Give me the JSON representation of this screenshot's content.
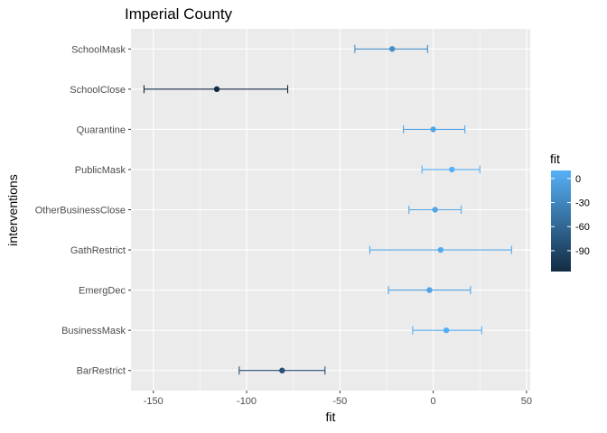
{
  "chart_data": {
    "type": "scatter",
    "title": "Imperial County",
    "xlabel": "fit",
    "ylabel": "interventions",
    "xlim": [
      -162,
      52
    ],
    "x_ticks": [
      -150,
      -100,
      -50,
      0,
      50
    ],
    "grid": true,
    "legend": {
      "title": "fit",
      "position": "right",
      "ticks": [
        0,
        -30,
        -60,
        -90
      ],
      "range": [
        -116,
        10
      ],
      "color_low": "#132B43",
      "color_high": "#56B1F7"
    },
    "categories": [
      "SchoolMask",
      "SchoolClose",
      "Quarantine",
      "PublicMask",
      "OtherBusinessClose",
      "GathRestrict",
      "EmergDec",
      "BusinessMask",
      "BarRestrict"
    ],
    "points": [
      {
        "intervention": "SchoolMask",
        "fit": -22,
        "lower": -42,
        "upper": -3
      },
      {
        "intervention": "SchoolClose",
        "fit": -116,
        "lower": -155,
        "upper": -78
      },
      {
        "intervention": "Quarantine",
        "fit": 0,
        "lower": -16,
        "upper": 17
      },
      {
        "intervention": "PublicMask",
        "fit": 10,
        "lower": -6,
        "upper": 25
      },
      {
        "intervention": "OtherBusinessClose",
        "fit": 1,
        "lower": -13,
        "upper": 15
      },
      {
        "intervention": "GathRestrict",
        "fit": 4,
        "lower": -34,
        "upper": 42
      },
      {
        "intervention": "EmergDec",
        "fit": -2,
        "lower": -24,
        "upper": 20
      },
      {
        "intervention": "BusinessMask",
        "fit": 7,
        "lower": -11,
        "upper": 26
      },
      {
        "intervention": "BarRestrict",
        "fit": -81,
        "lower": -104,
        "upper": -58
      }
    ]
  }
}
